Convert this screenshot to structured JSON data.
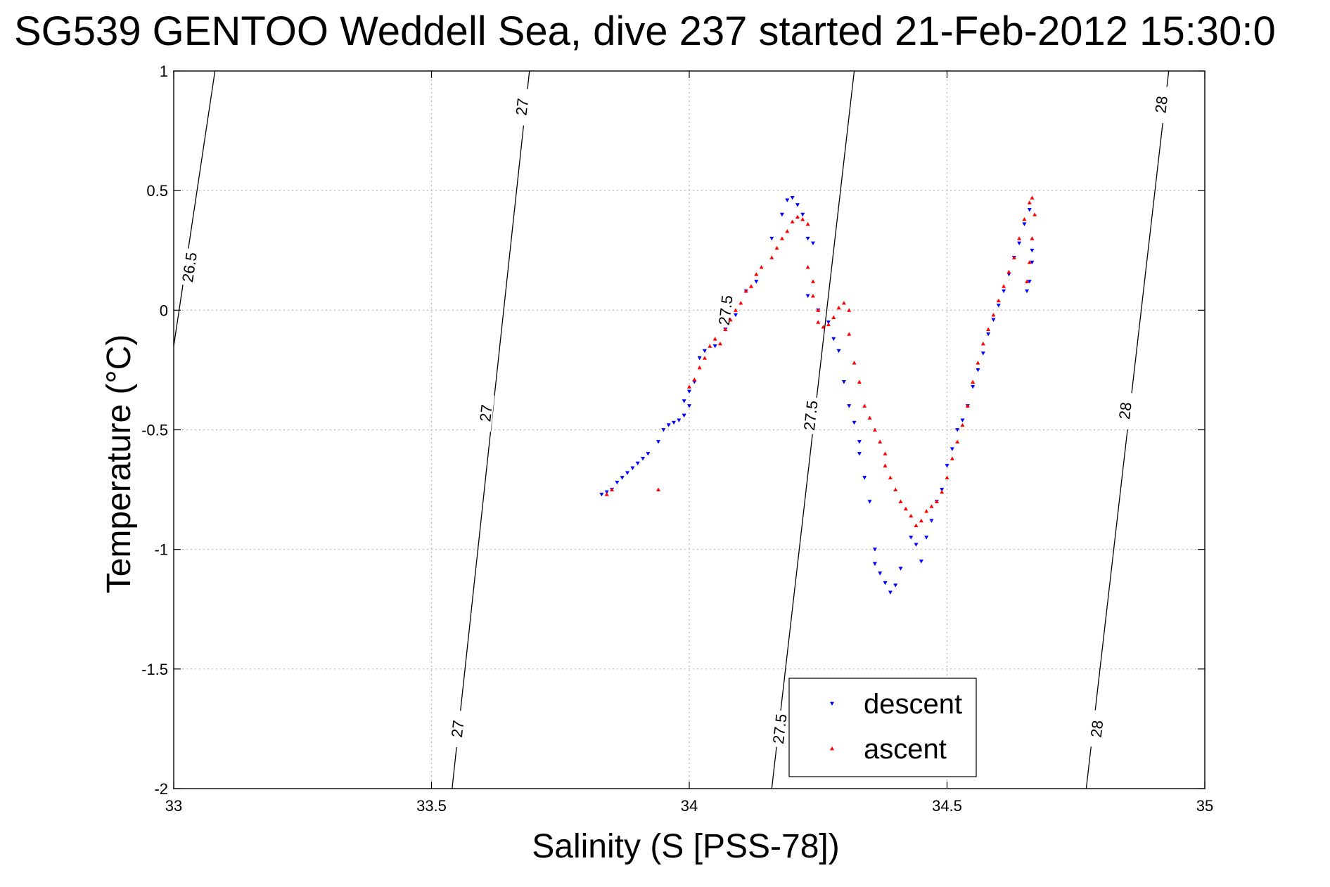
{
  "chart_data": {
    "type": "scatter",
    "title": "SG539 GENTOO Weddell Sea, dive 237 started 21-Feb-2012 15:30:0",
    "xlabel": "Salinity (S [PSS-78])",
    "ylabel": "Temperature (°C)",
    "xlim": [
      33,
      35
    ],
    "ylim": [
      -2,
      1
    ],
    "xticks": [
      33,
      33.5,
      34,
      34.5,
      35
    ],
    "xtick_labels": [
      "33",
      "33.5",
      "34",
      "34.5",
      "35"
    ],
    "yticks": [
      1,
      0.5,
      0,
      -0.5,
      -1,
      -1.5,
      -2
    ],
    "ytick_labels": [
      "1",
      "0.5",
      "0",
      "-0.5",
      "-1",
      "-1.5",
      "-2"
    ],
    "grid": true,
    "legend_position": "bottom-center",
    "contours": [
      {
        "level": "26.5",
        "points": [
          [
            33.0,
            -0.15
          ],
          [
            33.08,
            1.0
          ]
        ],
        "labels": [
          {
            "x": 33.03,
            "y": 0.18
          }
        ]
      },
      {
        "level": "27",
        "points": [
          [
            33.54,
            -2.0
          ],
          [
            33.69,
            1.0
          ]
        ],
        "labels": [
          {
            "x": 33.55,
            "y": -1.75
          },
          {
            "x": 33.605,
            "y": -0.43
          },
          {
            "x": 33.675,
            "y": 0.85
          }
        ]
      },
      {
        "level": "27.5",
        "points": [
          [
            34.16,
            -2.0
          ],
          [
            34.32,
            1.0
          ]
        ],
        "labels": [
          {
            "x": 34.175,
            "y": -1.75
          },
          {
            "x": 34.235,
            "y": -0.44
          },
          {
            "x": 34.07,
            "y": 0.0
          }
        ]
      },
      {
        "level": "28",
        "points": [
          [
            34.77,
            -2.0
          ],
          [
            34.93,
            1.0
          ]
        ],
        "labels": [
          {
            "x": 34.79,
            "y": -1.75
          },
          {
            "x": 34.845,
            "y": -0.42
          },
          {
            "x": 34.915,
            "y": 0.86
          }
        ]
      }
    ],
    "series": [
      {
        "name": "descent",
        "color": "#0000ff",
        "marker": "triangle-down",
        "points": [
          [
            33.83,
            -0.77
          ],
          [
            33.84,
            -0.76
          ],
          [
            33.85,
            -0.75
          ],
          [
            33.86,
            -0.72
          ],
          [
            33.87,
            -0.7
          ],
          [
            33.88,
            -0.68
          ],
          [
            33.89,
            -0.66
          ],
          [
            33.9,
            -0.64
          ],
          [
            33.91,
            -0.62
          ],
          [
            33.92,
            -0.6
          ],
          [
            33.94,
            -0.55
          ],
          [
            33.95,
            -0.5
          ],
          [
            33.96,
            -0.48
          ],
          [
            33.97,
            -0.47
          ],
          [
            33.98,
            -0.46
          ],
          [
            33.99,
            -0.44
          ],
          [
            33.99,
            -0.38
          ],
          [
            34.0,
            -0.4
          ],
          [
            34.0,
            -0.34
          ],
          [
            34.01,
            -0.3
          ],
          [
            34.02,
            -0.2
          ],
          [
            34.03,
            -0.17
          ],
          [
            34.05,
            -0.15
          ],
          [
            34.07,
            -0.08
          ],
          [
            34.09,
            -0.02
          ],
          [
            34.11,
            0.08
          ],
          [
            34.13,
            0.12
          ],
          [
            34.16,
            0.3
          ],
          [
            34.18,
            0.4
          ],
          [
            34.19,
            0.46
          ],
          [
            34.2,
            0.47
          ],
          [
            34.21,
            0.44
          ],
          [
            34.22,
            0.4
          ],
          [
            34.23,
            0.3
          ],
          [
            34.24,
            0.28
          ],
          [
            34.23,
            0.06
          ],
          [
            34.25,
            0.0
          ],
          [
            34.27,
            -0.05
          ],
          [
            34.28,
            -0.12
          ],
          [
            34.29,
            -0.17
          ],
          [
            34.3,
            -0.3
          ],
          [
            34.31,
            -0.4
          ],
          [
            34.32,
            -0.47
          ],
          [
            34.33,
            -0.55
          ],
          [
            34.33,
            -0.6
          ],
          [
            34.34,
            -0.7
          ],
          [
            34.35,
            -0.8
          ],
          [
            34.36,
            -1.0
          ],
          [
            34.36,
            -1.06
          ],
          [
            34.37,
            -1.1
          ],
          [
            34.38,
            -1.14
          ],
          [
            34.39,
            -1.18
          ],
          [
            34.4,
            -1.15
          ],
          [
            34.41,
            -1.08
          ],
          [
            34.43,
            -0.95
          ],
          [
            34.44,
            -0.98
          ],
          [
            34.45,
            -1.05
          ],
          [
            34.46,
            -0.95
          ],
          [
            34.47,
            -0.88
          ],
          [
            34.48,
            -0.8
          ],
          [
            34.49,
            -0.75
          ],
          [
            34.5,
            -0.65
          ],
          [
            34.51,
            -0.58
          ],
          [
            34.52,
            -0.5
          ],
          [
            34.53,
            -0.46
          ],
          [
            34.54,
            -0.4
          ],
          [
            34.55,
            -0.32
          ],
          [
            34.56,
            -0.25
          ],
          [
            34.57,
            -0.18
          ],
          [
            34.58,
            -0.1
          ],
          [
            34.59,
            -0.04
          ],
          [
            34.6,
            0.02
          ],
          [
            34.61,
            0.08
          ],
          [
            34.62,
            0.15
          ],
          [
            34.63,
            0.22
          ],
          [
            34.64,
            0.28
          ],
          [
            34.65,
            0.36
          ],
          [
            34.66,
            0.42
          ],
          [
            34.665,
            0.25
          ],
          [
            34.665,
            0.2
          ],
          [
            34.66,
            0.12
          ],
          [
            34.655,
            0.08
          ]
        ]
      },
      {
        "name": "ascent",
        "color": "#ff0000",
        "marker": "triangle-up",
        "points": [
          [
            33.84,
            -0.77
          ],
          [
            33.85,
            -0.75
          ],
          [
            33.94,
            -0.75
          ],
          [
            34.0,
            -0.32
          ],
          [
            34.01,
            -0.29
          ],
          [
            34.02,
            -0.24
          ],
          [
            34.03,
            -0.2
          ],
          [
            34.04,
            -0.15
          ],
          [
            34.05,
            -0.12
          ],
          [
            34.06,
            -0.14
          ],
          [
            34.07,
            -0.08
          ],
          [
            34.08,
            -0.04
          ],
          [
            34.09,
            0.0
          ],
          [
            34.1,
            0.03
          ],
          [
            34.11,
            0.08
          ],
          [
            34.12,
            0.1
          ],
          [
            34.13,
            0.15
          ],
          [
            34.14,
            0.18
          ],
          [
            34.16,
            0.22
          ],
          [
            34.17,
            0.26
          ],
          [
            34.18,
            0.3
          ],
          [
            34.19,
            0.33
          ],
          [
            34.2,
            0.37
          ],
          [
            34.21,
            0.39
          ],
          [
            34.22,
            0.38
          ],
          [
            34.23,
            0.36
          ],
          [
            34.23,
            0.18
          ],
          [
            34.24,
            0.12
          ],
          [
            34.24,
            0.06
          ],
          [
            34.25,
            0.0
          ],
          [
            34.25,
            -0.05
          ],
          [
            34.26,
            -0.07
          ],
          [
            34.27,
            -0.06
          ],
          [
            34.28,
            -0.03
          ],
          [
            34.29,
            0.01
          ],
          [
            34.3,
            0.03
          ],
          [
            34.31,
            0.0
          ],
          [
            34.31,
            -0.1
          ],
          [
            34.32,
            -0.22
          ],
          [
            34.33,
            -0.3
          ],
          [
            34.34,
            -0.4
          ],
          [
            34.35,
            -0.45
          ],
          [
            34.36,
            -0.5
          ],
          [
            34.37,
            -0.55
          ],
          [
            34.38,
            -0.6
          ],
          [
            34.38,
            -0.65
          ],
          [
            34.39,
            -0.7
          ],
          [
            34.4,
            -0.75
          ],
          [
            34.41,
            -0.8
          ],
          [
            34.42,
            -0.83
          ],
          [
            34.43,
            -0.86
          ],
          [
            34.44,
            -0.9
          ],
          [
            34.45,
            -0.88
          ],
          [
            34.46,
            -0.84
          ],
          [
            34.47,
            -0.82
          ],
          [
            34.48,
            -0.8
          ],
          [
            34.49,
            -0.76
          ],
          [
            34.5,
            -0.7
          ],
          [
            34.51,
            -0.62
          ],
          [
            34.52,
            -0.55
          ],
          [
            34.53,
            -0.48
          ],
          [
            34.54,
            -0.4
          ],
          [
            34.55,
            -0.3
          ],
          [
            34.56,
            -0.22
          ],
          [
            34.57,
            -0.14
          ],
          [
            34.58,
            -0.08
          ],
          [
            34.59,
            -0.02
          ],
          [
            34.6,
            0.04
          ],
          [
            34.61,
            0.1
          ],
          [
            34.62,
            0.16
          ],
          [
            34.63,
            0.22
          ],
          [
            34.64,
            0.3
          ],
          [
            34.65,
            0.38
          ],
          [
            34.66,
            0.45
          ],
          [
            34.665,
            0.47
          ],
          [
            34.67,
            0.4
          ],
          [
            34.665,
            0.3
          ],
          [
            34.66,
            0.2
          ],
          [
            34.655,
            0.12
          ]
        ]
      }
    ]
  }
}
